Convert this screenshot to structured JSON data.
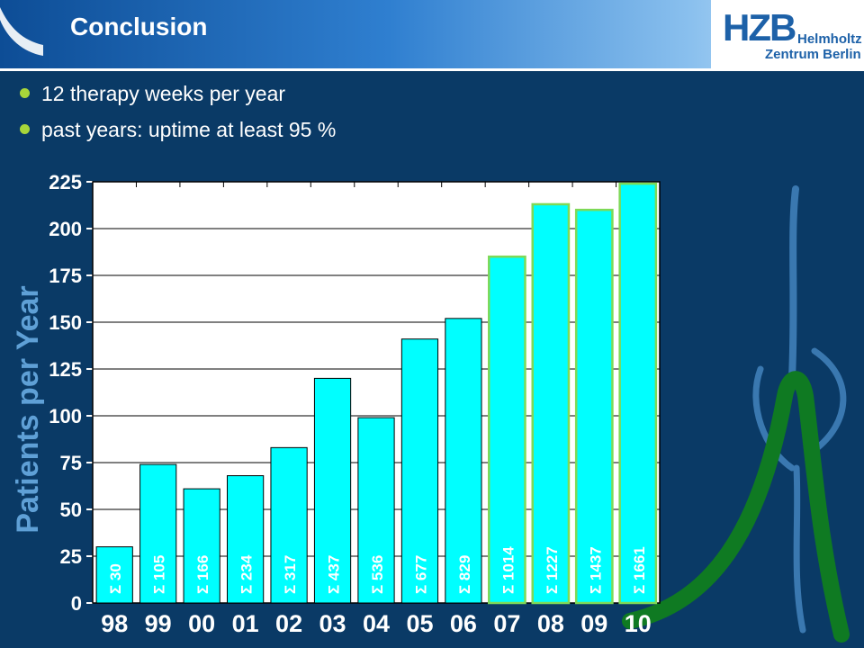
{
  "header": {
    "title": "Conclusion"
  },
  "logo": {
    "mark": "HZB",
    "line1": "Helmholtz",
    "line2": "Zentrum Berlin"
  },
  "bullets": [
    "12 therapy weeks per year",
    "past years: uptime at least 95 %"
  ],
  "colors": {
    "bar": "#00ffff",
    "bar_highlight": "#7ed957",
    "background": "#0a3a66",
    "plot_bg": "#ffffff",
    "accent": "#a8d63a"
  },
  "icons": {
    "bullet": "bullet-dot-icon",
    "decoration": "stylized-figure-icon"
  },
  "chart_data": {
    "type": "bar",
    "title": "",
    "xlabel": "",
    "ylabel": "Patients per Year",
    "ylim": [
      0,
      225
    ],
    "yticks": [
      "0",
      "25",
      "50",
      "75",
      "100",
      "125",
      "150",
      "175",
      "200",
      "225"
    ],
    "categories": [
      "98",
      "99",
      "00",
      "01",
      "02",
      "03",
      "04",
      "05",
      "06",
      "07",
      "08",
      "09",
      "10"
    ],
    "values": [
      30,
      74,
      61,
      68,
      83,
      120,
      99,
      141,
      152,
      185,
      213,
      210,
      224
    ],
    "bar_labels": [
      "Σ 30",
      "Σ 105",
      "Σ 166",
      "Σ 234",
      "Σ 317",
      "Σ 437",
      "Σ 536",
      "Σ 677",
      "Σ 829",
      "Σ 1014",
      "Σ 1227",
      "Σ 1437",
      "Σ 1661"
    ],
    "highlighted_categories": [
      "07",
      "08",
      "09",
      "10"
    ],
    "grid": true
  }
}
